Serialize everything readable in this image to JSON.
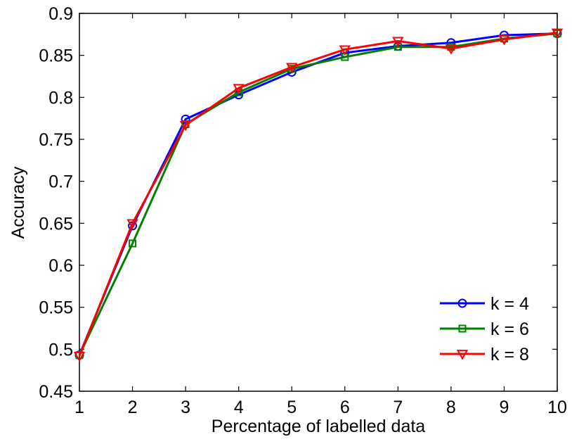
{
  "chart_data": {
    "type": "line",
    "title": "",
    "xlabel": "Percentage of labelled data",
    "ylabel": "Accuracy",
    "xlim": [
      1,
      10
    ],
    "ylim": [
      0.45,
      0.9
    ],
    "xticks": [
      "1",
      "2",
      "3",
      "4",
      "5",
      "6",
      "7",
      "8",
      "9",
      "10"
    ],
    "yticks": [
      "0.45",
      "0.5",
      "0.55",
      "0.6",
      "0.65",
      "0.7",
      "0.75",
      "0.8",
      "0.85",
      "0.9"
    ],
    "grid": false,
    "legend_position": "bottom-right",
    "x": [
      1,
      2,
      3,
      4,
      5,
      6,
      7,
      8,
      9,
      10
    ],
    "series": [
      {
        "name": "k = 4",
        "color": "#0000ff",
        "marker": "circle",
        "values": [
          0.493,
          0.647,
          0.774,
          0.803,
          0.83,
          0.853,
          0.861,
          0.865,
          0.874,
          0.876
        ]
      },
      {
        "name": "k = 6",
        "color": "#008000",
        "marker": "square",
        "values": [
          0.493,
          0.626,
          0.768,
          0.806,
          0.834,
          0.848,
          0.86,
          0.86,
          0.87,
          0.876
        ]
      },
      {
        "name": "k = 8",
        "color": "#ff0000",
        "marker": "triangle-down",
        "values": [
          0.492,
          0.65,
          0.767,
          0.811,
          0.836,
          0.857,
          0.867,
          0.858,
          0.869,
          0.877
        ]
      }
    ]
  }
}
